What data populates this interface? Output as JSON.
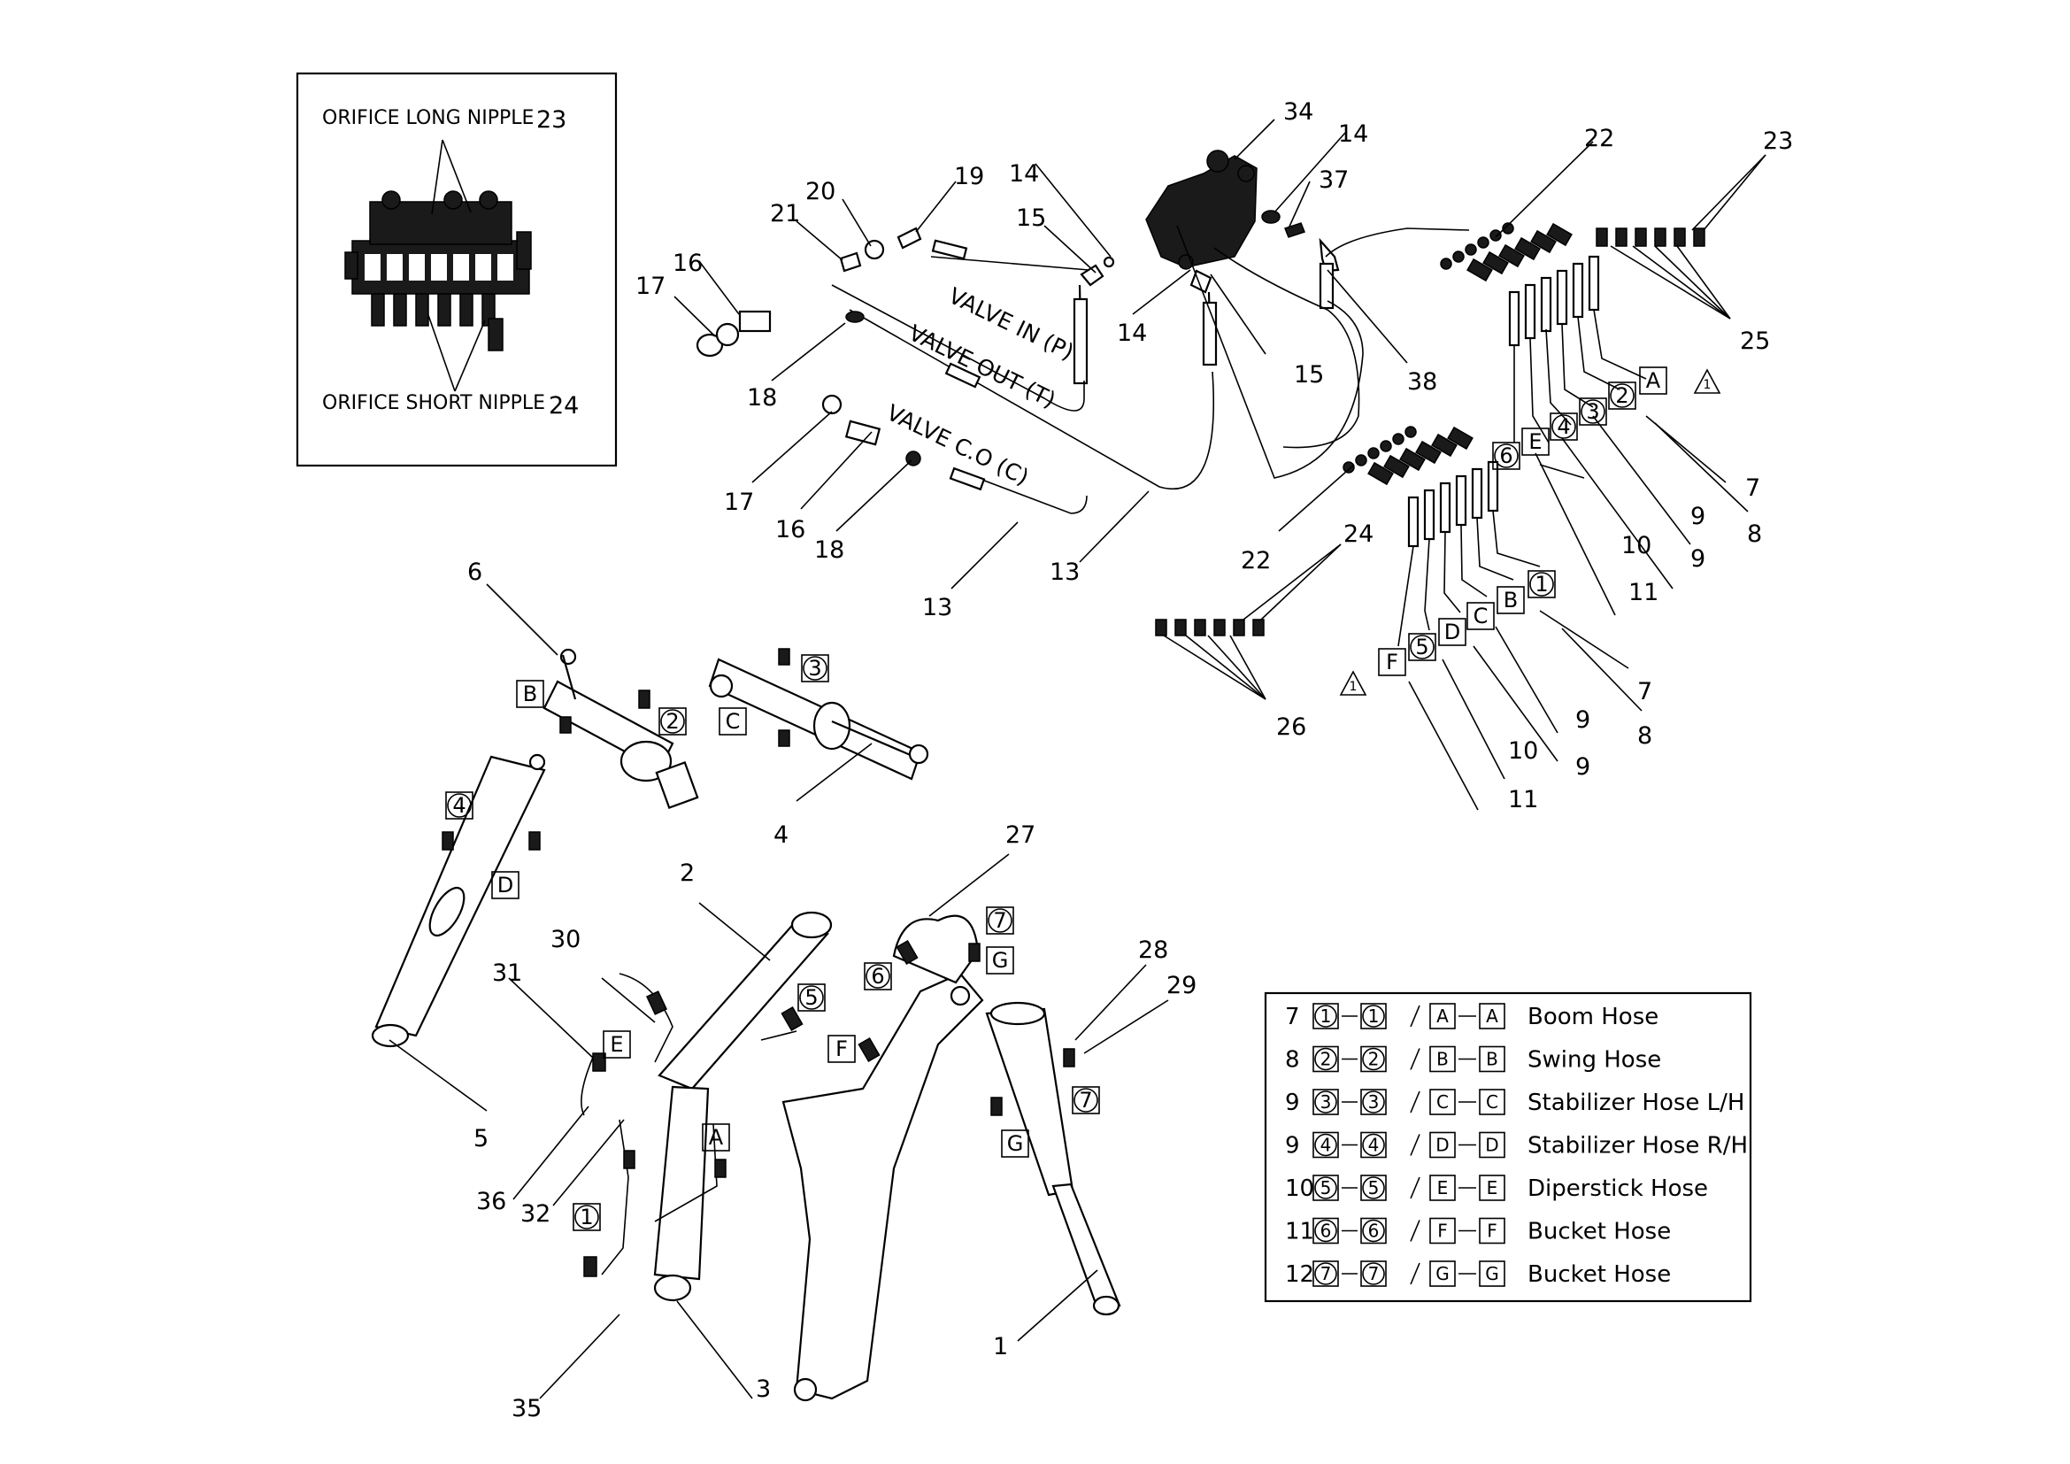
{
  "inset": {
    "top_label": "ORIFICE LONG NIPPLE",
    "top_num": "23",
    "bottom_label": "ORIFICE SHORT NIPPLE",
    "bottom_num": "24"
  },
  "pipe_labels": {
    "in": "VALVE IN (P)",
    "out": "VALVE OUT (T)",
    "co": "VALVE C.O (C)"
  },
  "callouts": {
    "c34": "34",
    "c14a": "14",
    "c14b": "14",
    "c14c": "14",
    "c15a": "15",
    "c15b": "15",
    "c37": "37",
    "c38": "38",
    "c22a": "22",
    "c22b": "22",
    "c23": "23",
    "c25": "25",
    "c24": "24",
    "c26": "26",
    "c19": "19",
    "c20": "20",
    "c21": "21",
    "c16a": "16",
    "c16b": "16",
    "c17a": "17",
    "c17b": "17",
    "c18a": "18",
    "c18b": "18",
    "c13a": "13",
    "c13b": "13",
    "r7a": "7",
    "r8a": "8",
    "r9a": "9",
    "r9b": "9",
    "r10a": "10",
    "r11a": "11",
    "r7b": "7",
    "r8b": "8",
    "r9c": "9",
    "r9d": "9",
    "r10b": "10",
    "r11b": "11",
    "c6": "6",
    "c4": "4",
    "c5": "5",
    "c2": "2",
    "c27": "27",
    "c28": "28",
    "c29": "29",
    "c30": "30",
    "c31": "31",
    "c36": "36",
    "c32": "32",
    "c35": "35",
    "c3": "3",
    "c1": "1"
  },
  "tags": {
    "upper_letters": [
      "A",
      "E",
      "6"
    ],
    "upper_circles": [
      "2",
      "4",
      "3"
    ],
    "lower_letters": [
      "B",
      "C",
      "D",
      "F"
    ],
    "lower_circles": [
      "1",
      "5"
    ]
  },
  "part_tags": {
    "B": "B",
    "t2": "2",
    "t3": "3",
    "C": "C",
    "t4": "4",
    "D": "D",
    "E": "E",
    "t5": "5",
    "A": "A",
    "t1": "1",
    "t6": "6",
    "t7a": "7",
    "G1": "G",
    "F": "F",
    "t7b": "7",
    "G2": "G"
  },
  "warning_symbol": "1",
  "legend": {
    "rows": [
      {
        "no": "7",
        "n": "1",
        "l": "A",
        "name": "Boom Hose"
      },
      {
        "no": "8",
        "n": "2",
        "l": "B",
        "name": "Swing Hose"
      },
      {
        "no": "9",
        "n": "3",
        "l": "C",
        "name": "Stabilizer Hose L/H"
      },
      {
        "no": "9",
        "n": "4",
        "l": "D",
        "name": "Stabilizer Hose R/H"
      },
      {
        "no": "10",
        "n": "5",
        "l": "E",
        "name": "Diperstick Hose"
      },
      {
        "no": "11",
        "n": "6",
        "l": "F",
        "name": "Bucket Hose"
      },
      {
        "no": "12",
        "n": "7",
        "l": "G",
        "name": "Bucket Hose"
      }
    ]
  }
}
